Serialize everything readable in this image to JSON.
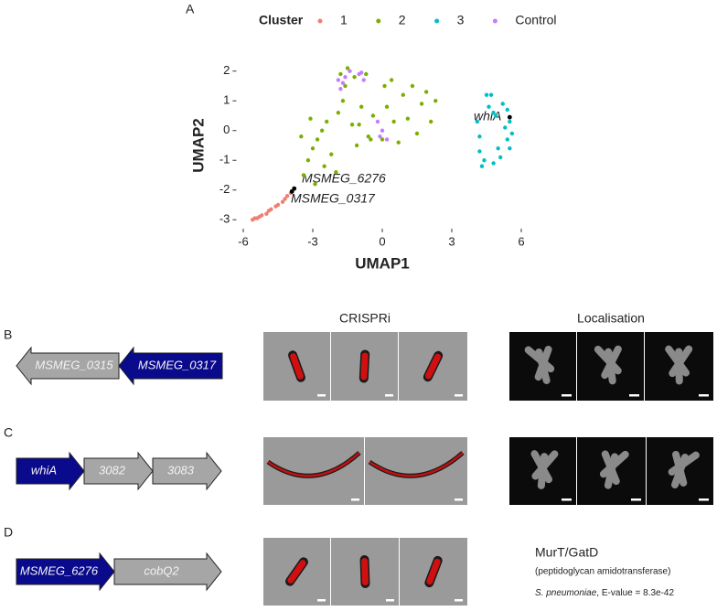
{
  "chart_data": {
    "type": "scatter",
    "x_label": "UMAP1",
    "y_label": "UMAP2",
    "legend_title": "Cluster",
    "legend_position": "top",
    "xlim": [
      -6.3,
      6.3
    ],
    "ylim": [
      -3.3,
      2.3
    ],
    "xticks": [
      -6,
      -3,
      0,
      3,
      6
    ],
    "yticks": [
      -3,
      -2,
      -1,
      0,
      1,
      2
    ],
    "series": [
      {
        "name": "1",
        "color": "#f07f72",
        "x": [
          -5.6,
          -5.5,
          -5.4,
          -5.3,
          -5.2,
          -5.0,
          -4.9,
          -4.8,
          -4.6,
          -4.5,
          -4.3,
          -4.2,
          -4.1,
          -3.95
        ],
        "y": [
          -3.0,
          -2.95,
          -2.95,
          -2.9,
          -2.85,
          -2.8,
          -2.7,
          -2.65,
          -2.55,
          -2.5,
          -2.4,
          -2.3,
          -2.2,
          -2.1
        ]
      },
      {
        "name": "2",
        "color": "#7cae00",
        "x": [
          -3.4,
          -3.2,
          -3.0,
          -2.8,
          -2.6,
          -2.4,
          -2.2,
          -2.0,
          -1.9,
          -1.7,
          -1.6,
          -1.8,
          -1.5,
          -1.2,
          -1.3,
          -1.1,
          -0.9,
          -0.7,
          -0.6,
          -0.4,
          -0.5,
          0.1,
          0.2,
          0.4,
          0.5,
          0.7,
          0.9,
          1.1,
          1.3,
          1.5,
          1.7,
          1.9,
          2.1,
          2.3,
          -3.5,
          -2.5,
          -3.1,
          -2.9,
          -1.0,
          0.0
        ],
        "y": [
          -1.5,
          -1.0,
          -0.6,
          -0.3,
          0.0,
          0.3,
          -0.8,
          -1.4,
          0.6,
          1.0,
          1.5,
          1.9,
          2.1,
          1.8,
          0.2,
          -0.5,
          0.8,
          1.9,
          -0.2,
          0.5,
          -0.3,
          1.5,
          0.8,
          1.7,
          0.3,
          -0.4,
          1.2,
          0.4,
          1.5,
          -0.1,
          0.9,
          1.3,
          0.3,
          1.0,
          -0.2,
          -1.2,
          0.4,
          -1.8,
          0.2,
          -0.3
        ]
      },
      {
        "name": "3",
        "color": "#00bfc4",
        "x": [
          4.1,
          4.2,
          4.3,
          4.4,
          4.5,
          4.6,
          4.7,
          4.8,
          5.0,
          5.1,
          5.2,
          5.3,
          5.4,
          5.5,
          5.6,
          5.5,
          4.2,
          4.9,
          4.8,
          5.4
        ],
        "y": [
          0.3,
          -0.7,
          -1.2,
          -1.0,
          1.2,
          0.8,
          1.2,
          -1.1,
          -0.6,
          -0.9,
          0.9,
          0.1,
          -0.3,
          0.3,
          -0.1,
          -0.6,
          -0.2,
          0.5,
          0.6,
          0.7
        ]
      },
      {
        "name": "Control",
        "color": "#c77cff",
        "x": [
          -1.9,
          -1.8,
          -1.6,
          -1.4,
          -1.0,
          -0.8,
          -0.2,
          0.0,
          -0.1,
          0.2,
          -1.7,
          -0.9
        ],
        "y": [
          1.7,
          1.4,
          1.8,
          2.0,
          1.9,
          1.7,
          0.3,
          0.0,
          -0.2,
          -0.3,
          1.6,
          1.95
        ]
      }
    ],
    "highlighted": {
      "color": "#000000",
      "x": [
        -3.9,
        -3.8,
        5.5
      ],
      "y": [
        -2.05,
        -1.95,
        0.45
      ]
    },
    "annotations": [
      "MSMEG_6276",
      "MSMEG_0317",
      "whiA"
    ]
  },
  "panel_labels": [
    "A",
    "B",
    "C",
    "D"
  ],
  "column_headers": [
    "CRISPRi",
    "Localisation"
  ],
  "operons": [
    {
      "genes": [
        {
          "label": "MSMEG_0315",
          "highlight": false
        },
        {
          "label": "MSMEG_0317",
          "highlight": true
        }
      ],
      "direction": "left"
    },
    {
      "genes": [
        {
          "label": "whiA",
          "highlight": true
        },
        {
          "label": "3082",
          "highlight": false
        },
        {
          "label": "3083",
          "highlight": false
        }
      ],
      "direction": "right"
    },
    {
      "genes": [
        {
          "label": "MSMEG_6276",
          "highlight": true
        },
        {
          "label": "cobQ2",
          "highlight": false
        }
      ],
      "direction": "right"
    }
  ],
  "homology": {
    "name": "MurT/GatD",
    "description": "(peptidoglycan amidotransferase)",
    "organism": "S. pneumoniae",
    "evalue": ", E-value = 8.3e-42"
  }
}
